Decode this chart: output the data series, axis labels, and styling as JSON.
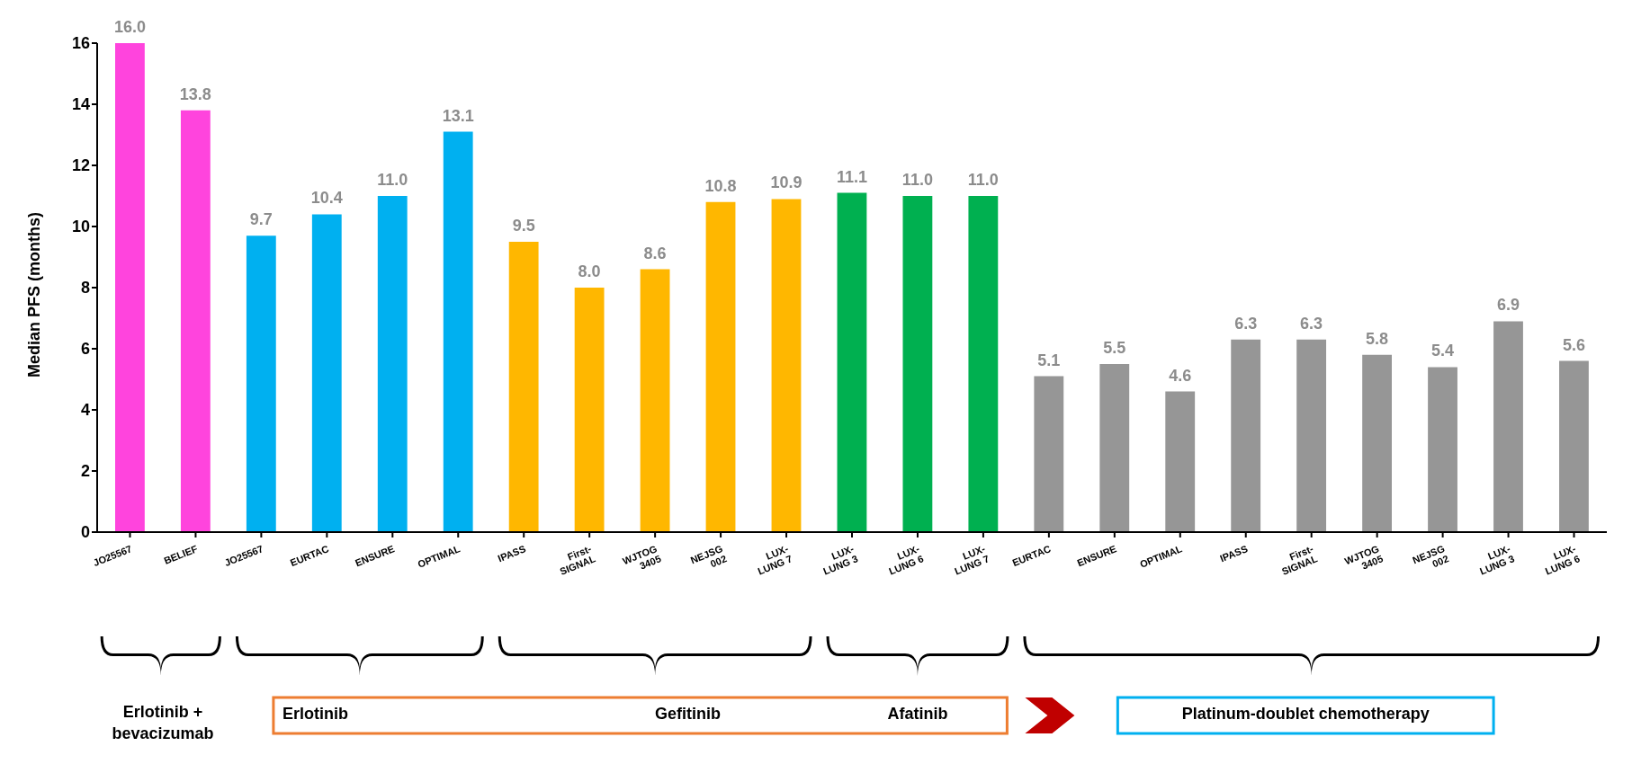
{
  "chart_data": {
    "type": "bar",
    "ylabel": "Median PFS (months)",
    "categories": [
      "JO25567",
      "BELIEF",
      "JO25567",
      "EURTAC",
      "ENSURE",
      "OPTIMAL",
      "IPASS",
      "First-\nSIGNAL",
      "WJTOG\n3405",
      "NEJSG\n002",
      "LUX-\nLUNG 7",
      "LUX-\nLUNG 3",
      "LUX-\nLUNG 6",
      "LUX-\nLUNG 7",
      "EURTAC",
      "ENSURE",
      "OPTIMAL",
      "IPASS",
      "First-\nSIGNAL",
      "WJTOG\n3405",
      "NEJSG\n002",
      "LUX-\nLUNG 3",
      "LUX-\nLUNG 6"
    ],
    "values": [
      16.0,
      13.8,
      9.7,
      10.4,
      11.0,
      13.1,
      9.5,
      8.0,
      8.6,
      10.8,
      10.9,
      11.1,
      11.0,
      11.0,
      5.1,
      5.5,
      4.6,
      6.3,
      6.3,
      5.8,
      5.4,
      6.9,
      5.6
    ],
    "value_labels": [
      "16.0",
      "13.8",
      "9.7",
      "10.4",
      "11.0",
      "13.1",
      "9.5",
      "8.0",
      "8.6",
      "10.8",
      "10.9",
      "11.1",
      "11.0",
      "11.0",
      "5.1",
      "5.5",
      "4.6",
      "6.3",
      "6.3",
      "5.8",
      "5.4",
      "6.9",
      "5.6"
    ],
    "colors": [
      "#ff44dd",
      "#ff44dd",
      "#00b0f0",
      "#00b0f0",
      "#00b0f0",
      "#00b0f0",
      "#ffb700",
      "#ffb700",
      "#ffb700",
      "#ffb700",
      "#ffb700",
      "#00b050",
      "#00b050",
      "#00b050",
      "#969696",
      "#969696",
      "#969696",
      "#969696",
      "#969696",
      "#969696",
      "#969696",
      "#969696",
      "#969696"
    ],
    "ylim": [
      0,
      16
    ],
    "yticks": [
      0,
      2,
      4,
      6,
      8,
      10,
      12,
      14,
      16
    ],
    "grid": false,
    "legend": false,
    "annotations": [
      "Erlotinib + bevacizumab",
      "Erlotinib",
      "Gefitinib",
      "Afatinib",
      "Platinum-doublet chemotherapy"
    ]
  }
}
